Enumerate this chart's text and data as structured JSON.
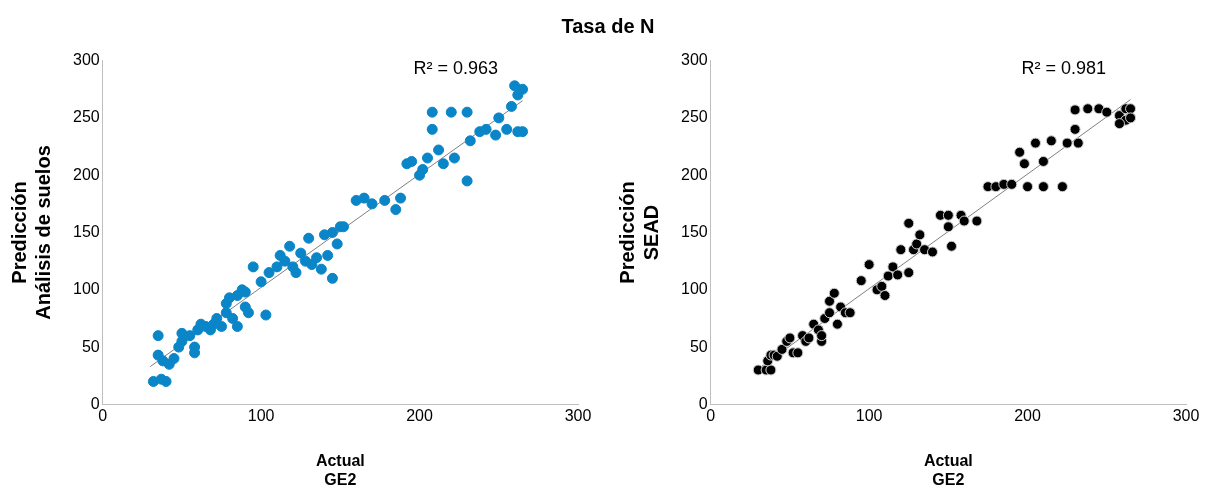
{
  "chart_data": [
    {
      "type": "scatter",
      "title": "Tasa de N",
      "xlabel": "Actual\nGE2",
      "ylabel": "Predicción\nAnálisis de suelos",
      "annotations": [
        "R² = 0.963"
      ],
      "xlim": [
        0,
        300
      ],
      "xticks": [
        0,
        100,
        200,
        300
      ],
      "ylim": [
        0,
        300
      ],
      "yticks": [
        0,
        50,
        100,
        150,
        200,
        250,
        300
      ],
      "grid": false,
      "legend": false,
      "series": [
        {
          "marker": "circle",
          "color": "#0a86c8",
          "x": [
            32,
            37,
            40,
            35,
            35,
            38,
            42,
            45,
            48,
            50,
            50,
            55,
            58,
            58,
            60,
            62,
            65,
            68,
            70,
            72,
            75,
            78,
            78,
            80,
            82,
            85,
            85,
            88,
            90,
            90,
            92,
            95,
            100,
            103,
            105,
            110,
            112,
            115,
            118,
            120,
            122,
            125,
            128,
            130,
            132,
            135,
            138,
            140,
            142,
            145,
            145,
            148,
            150,
            152,
            160,
            165,
            170,
            178,
            185,
            188,
            192,
            195,
            200,
            202,
            205,
            208,
            208,
            212,
            215,
            220,
            222,
            230,
            230,
            232,
            238,
            242,
            248,
            250,
            255,
            258,
            260,
            262,
            265,
            262,
            265
          ],
          "values": [
            20,
            22,
            20,
            43,
            60,
            38,
            35,
            40,
            50,
            55,
            62,
            60,
            45,
            50,
            65,
            70,
            68,
            65,
            70,
            75,
            68,
            80,
            88,
            93,
            75,
            95,
            68,
            100,
            98,
            85,
            80,
            120,
            107,
            78,
            115,
            120,
            130,
            125,
            138,
            120,
            115,
            132,
            125,
            145,
            122,
            128,
            118,
            148,
            130,
            110,
            150,
            140,
            155,
            155,
            178,
            180,
            175,
            178,
            170,
            180,
            210,
            212,
            200,
            205,
            215,
            255,
            240,
            222,
            210,
            255,
            215,
            255,
            195,
            230,
            238,
            240,
            235,
            250,
            240,
            260,
            278,
            270,
            238,
            238,
            275
          ]
        },
        {
          "type": "line",
          "marker": "none",
          "color": "#808080",
          "x": [
            30,
            265
          ],
          "values": [
            33,
            265
          ]
        }
      ]
    },
    {
      "type": "scatter",
      "xlabel": "Actual\nGE2",
      "ylabel": "Predicción\nSEAD",
      "annotations": [
        "R² = 0.981"
      ],
      "xlim": [
        0,
        300
      ],
      "xticks": [
        0,
        100,
        200,
        300
      ],
      "ylim": [
        0,
        300
      ],
      "yticks": [
        0,
        50,
        100,
        150,
        200,
        250,
        300
      ],
      "grid": false,
      "legend": false,
      "series": [
        {
          "marker": "circle",
          "color": "#000000",
          "x": [
            30,
            35,
            38,
            36,
            38,
            40,
            42,
            45,
            48,
            50,
            52,
            55,
            58,
            60,
            62,
            65,
            68,
            70,
            70,
            72,
            75,
            75,
            78,
            80,
            82,
            85,
            88,
            95,
            100,
            105,
            108,
            110,
            112,
            115,
            118,
            120,
            125,
            125,
            128,
            130,
            132,
            135,
            140,
            145,
            150,
            150,
            152,
            158,
            160,
            168,
            175,
            180,
            185,
            190,
            195,
            198,
            200,
            205,
            210,
            210,
            215,
            222,
            225,
            230,
            230,
            232,
            238,
            245,
            250,
            258,
            262,
            262,
            265,
            265,
            258
          ],
          "values": [
            30,
            30,
            30,
            38,
            43,
            43,
            42,
            48,
            55,
            58,
            45,
            45,
            60,
            55,
            58,
            70,
            65,
            55,
            60,
            75,
            80,
            90,
            97,
            70,
            85,
            80,
            80,
            108,
            122,
            100,
            103,
            95,
            112,
            120,
            113,
            135,
            115,
            158,
            135,
            140,
            148,
            135,
            133,
            165,
            165,
            155,
            138,
            165,
            160,
            160,
            190,
            190,
            192,
            192,
            220,
            210,
            190,
            228,
            212,
            190,
            230,
            190,
            228,
            257,
            240,
            228,
            258,
            258,
            255,
            252,
            258,
            248,
            258,
            250,
            245
          ]
        },
        {
          "type": "line",
          "marker": "none",
          "color": "#808080",
          "x": [
            30,
            265
          ],
          "values": [
            31,
            266
          ]
        }
      ]
    }
  ]
}
